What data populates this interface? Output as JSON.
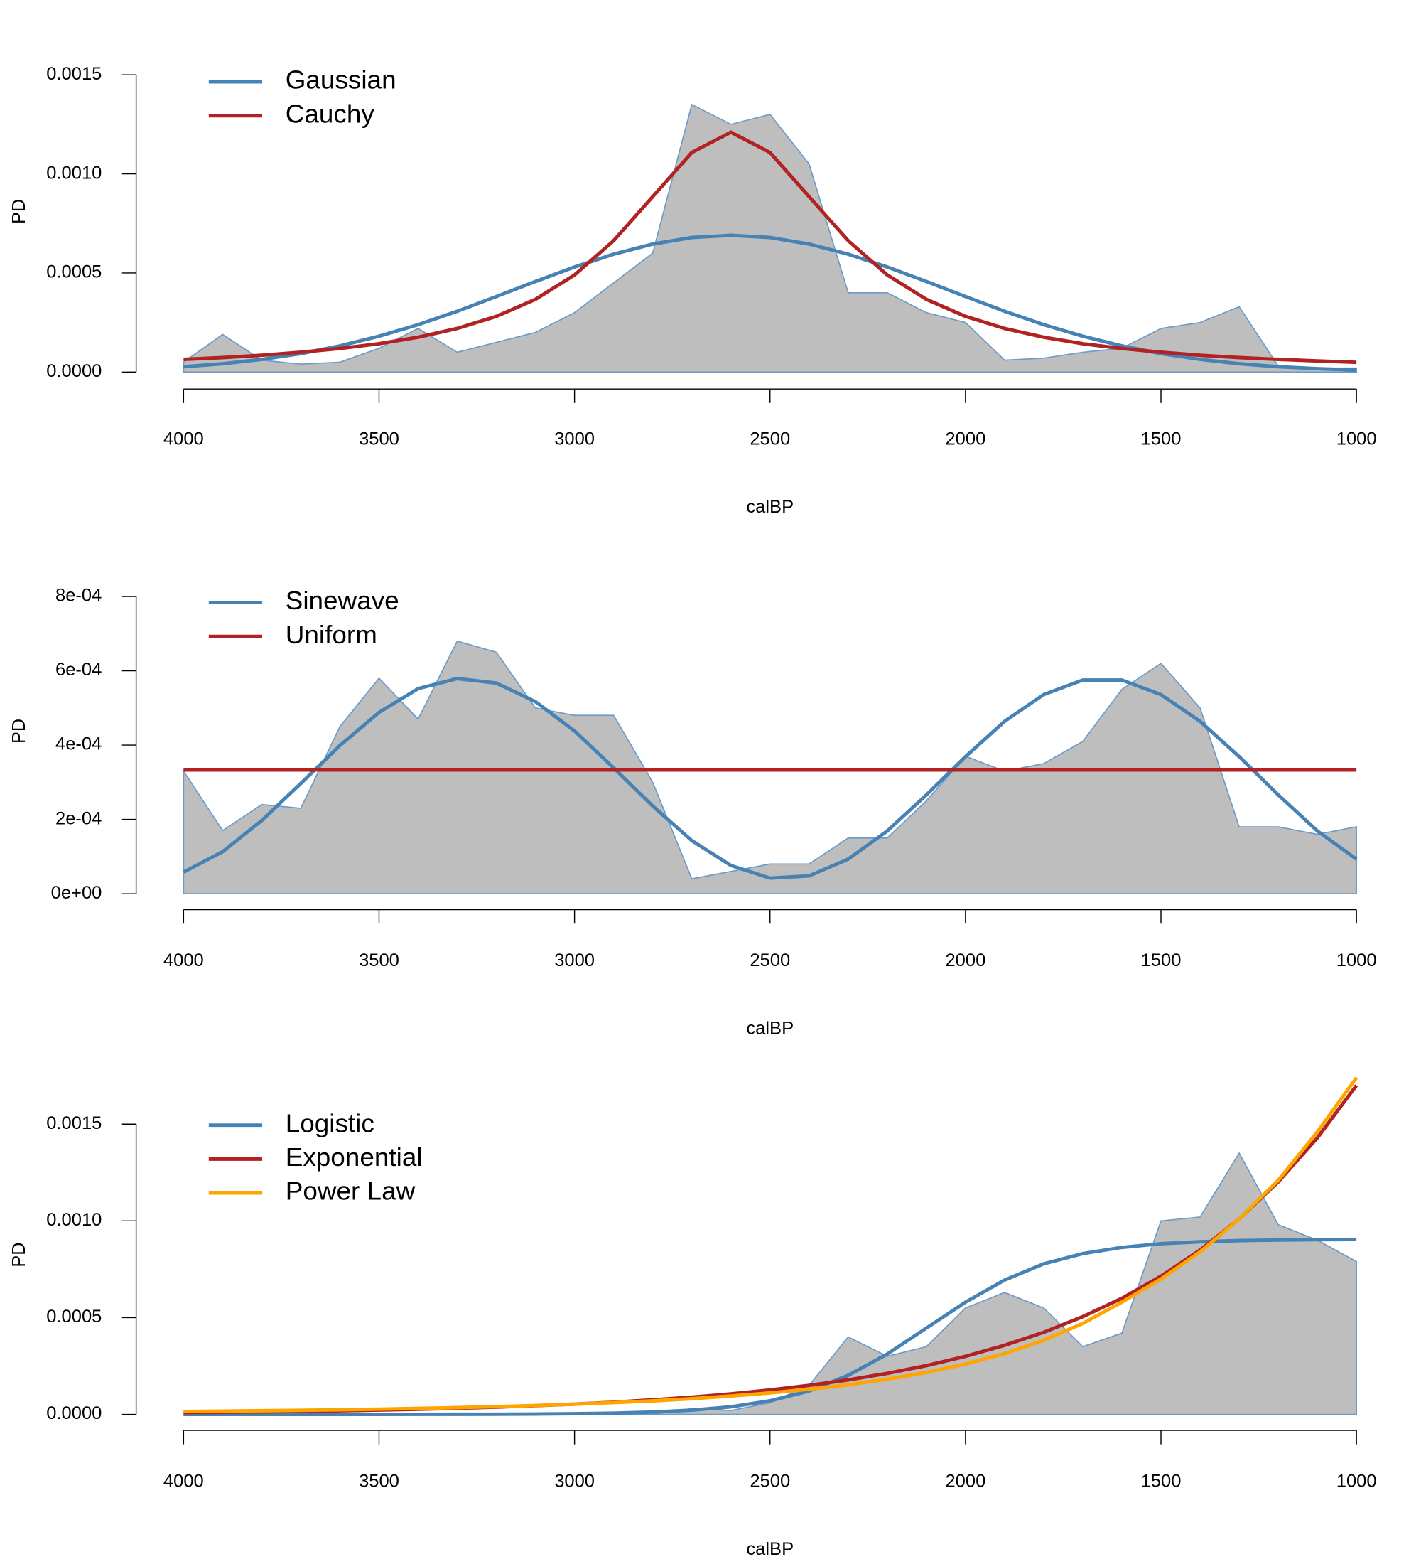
{
  "chart_data": [
    {
      "type": "line",
      "xlabel": "calBP",
      "ylabel": "PD",
      "x": [
        4000,
        3900,
        3800,
        3700,
        3600,
        3500,
        3400,
        3300,
        3200,
        3100,
        3000,
        2900,
        2800,
        2700,
        2600,
        2500,
        2400,
        2300,
        2200,
        2100,
        2000,
        1900,
        1800,
        1700,
        1600,
        1500,
        1400,
        1300,
        1200,
        1100,
        1000
      ],
      "xlim": [
        4000,
        1000
      ],
      "xticks": [
        4000,
        3500,
        3000,
        2500,
        2000,
        1500,
        1000
      ],
      "ylim": [
        0,
        0.0015
      ],
      "yticks": [
        {
          "value": 0,
          "label": "0.0000"
        },
        {
          "value": 0.0005,
          "label": "0.0005"
        },
        {
          "value": 0.001,
          "label": "0.0010"
        },
        {
          "value": 0.0015,
          "label": "0.0015"
        }
      ],
      "area": {
        "color": "#bebebe",
        "edge": "#6c9bc8",
        "values": [
          5e-05,
          0.00019,
          6e-05,
          4e-05,
          5e-05,
          0.00012,
          0.00022,
          0.0001,
          0.00015,
          0.0002,
          0.0003,
          0.00045,
          0.0006,
          0.00135,
          0.00125,
          0.0013,
          0.00105,
          0.0004,
          0.0004,
          0.0003,
          0.00025,
          6e-05,
          7e-05,
          0.0001,
          0.00012,
          0.00022,
          0.00025,
          0.00033,
          3e-05,
          2e-05,
          2e-05
        ]
      },
      "series": [
        {
          "name": "Gaussian",
          "color": "#4682b4",
          "values": [
            2.7e-05,
            4.2e-05,
            6.4e-05,
            9.3e-05,
            0.000132,
            0.000181,
            0.000239,
            0.000307,
            0.000381,
            0.000457,
            0.00053,
            0.000595,
            0.000646,
            0.000679,
            0.00069,
            0.000679,
            0.000646,
            0.000595,
            0.00053,
            0.000457,
            0.000381,
            0.000307,
            0.000239,
            0.000181,
            0.000132,
            9.3e-05,
            6.4e-05,
            4.2e-05,
            2.7e-05,
            1.7e-05,
            1e-05
          ]
        },
        {
          "name": "Cauchy",
          "color": "#b22222",
          "values": [
            6.4e-05,
            7.3e-05,
            8.5e-05,
            0.0001,
            0.000119,
            0.000143,
            0.000176,
            0.00022,
            0.000281,
            0.000367,
            0.00049,
            0.000663,
            0.000885,
            0.001108,
            0.00121,
            0.001108,
            0.000885,
            0.000663,
            0.00049,
            0.000367,
            0.000281,
            0.00022,
            0.000176,
            0.000143,
            0.000119,
            0.0001,
            8.5e-05,
            7.3e-05,
            6.4e-05,
            5.6e-05,
            4.9e-05
          ]
        }
      ]
    },
    {
      "type": "line",
      "xlabel": "calBP",
      "ylabel": "PD",
      "x": [
        4000,
        3900,
        3800,
        3700,
        3600,
        3500,
        3400,
        3300,
        3200,
        3100,
        3000,
        2900,
        2800,
        2700,
        2600,
        2500,
        2400,
        2300,
        2200,
        2100,
        2000,
        1900,
        1800,
        1700,
        1600,
        1500,
        1400,
        1300,
        1200,
        1100,
        1000
      ],
      "xlim": [
        4000,
        1000
      ],
      "xticks": [
        4000,
        3500,
        3000,
        2500,
        2000,
        1500,
        1000
      ],
      "ylim": [
        0,
        0.0008
      ],
      "yticks": [
        {
          "value": 0,
          "label": "0e+00"
        },
        {
          "value": 0.0002,
          "label": "2e-04"
        },
        {
          "value": 0.0004,
          "label": "4e-04"
        },
        {
          "value": 0.0006,
          "label": "6e-04"
        },
        {
          "value": 0.0008,
          "label": "8e-04"
        }
      ],
      "area": {
        "color": "#bebebe",
        "edge": "#6c9bc8",
        "values": [
          0.00033,
          0.00017,
          0.00024,
          0.00023,
          0.00045,
          0.00058,
          0.00047,
          0.00068,
          0.00065,
          0.0005,
          0.00048,
          0.00048,
          0.0003,
          4e-05,
          6e-05,
          8e-05,
          8e-05,
          0.00015,
          0.00015,
          0.00025,
          0.00037,
          0.00033,
          0.00035,
          0.00041,
          0.00055,
          0.00062,
          0.0005,
          0.00018,
          0.00018,
          0.00016,
          0.00018
        ]
      },
      "series": [
        {
          "name": "Sinewave",
          "color": "#4682b4",
          "values": [
            5.8e-05,
            0.000113,
            0.000197,
            0.000297,
            0.000399,
            0.000488,
            0.000552,
            0.000579,
            0.000567,
            0.000517,
            0.000438,
            0.000339,
            0.000236,
            0.000143,
            7.6e-05,
            4.2e-05,
            4.8e-05,
            9.3e-05,
            0.000169,
            0.000266,
            0.000369,
            0.000464,
            0.000536,
            0.000575,
            0.000575,
            0.000536,
            0.000464,
            0.000369,
            0.000266,
            0.000169,
            9.3e-05
          ]
        },
        {
          "name": "Uniform",
          "color": "#b22222",
          "values": [
            0.000333,
            0.000333,
            0.000333,
            0.000333,
            0.000333,
            0.000333,
            0.000333,
            0.000333,
            0.000333,
            0.000333,
            0.000333,
            0.000333,
            0.000333,
            0.000333,
            0.000333,
            0.000333,
            0.000333,
            0.000333,
            0.000333,
            0.000333,
            0.000333,
            0.000333,
            0.000333,
            0.000333,
            0.000333,
            0.000333,
            0.000333,
            0.000333,
            0.000333,
            0.000333,
            0.000333
          ]
        }
      ]
    },
    {
      "type": "line",
      "xlabel": "calBP",
      "ylabel": "PD",
      "x": [
        4000,
        3900,
        3800,
        3700,
        3600,
        3500,
        3400,
        3300,
        3200,
        3100,
        3000,
        2900,
        2800,
        2700,
        2600,
        2500,
        2400,
        2300,
        2200,
        2100,
        2000,
        1900,
        1800,
        1700,
        1600,
        1500,
        1400,
        1300,
        1200,
        1100,
        1000
      ],
      "xlim": [
        4000,
        1000
      ],
      "xticks": [
        4000,
        3500,
        3000,
        2500,
        2000,
        1500,
        1000
      ],
      "ylim": [
        0,
        0.0015
      ],
      "yticks": [
        {
          "value": 0,
          "label": "0.0000"
        },
        {
          "value": 0.0005,
          "label": "0.0005"
        },
        {
          "value": 0.001,
          "label": "0.0010"
        },
        {
          "value": 0.0015,
          "label": "0.0015"
        }
      ],
      "area": {
        "color": "#bebebe",
        "edge": "#6c9bc8",
        "values": [
          0,
          0,
          0,
          0,
          0,
          0,
          0,
          0,
          0,
          0,
          0,
          0,
          0,
          3e-05,
          2e-05,
          6e-05,
          0.00015,
          0.0004,
          0.0003,
          0.00035,
          0.00055,
          0.00063,
          0.00055,
          0.00035,
          0.00042,
          0.001,
          0.00102,
          0.00135,
          0.00098,
          0.0009,
          0.00079
        ]
      },
      "series": [
        {
          "name": "Logistic",
          "color": "#4682b4",
          "values": [
            1e-08,
            2e-08,
            3e-08,
            5e-08,
            9e-08,
            1.7e-07,
            3e-07,
            6e-07,
            1e-06,
            1.9e-06,
            3.5e-06,
            6.5e-06,
            1.2e-05,
            2.2e-05,
            3.9e-05,
            7e-05,
            0.000121,
            0.000202,
            0.000312,
            0.000446,
            0.00058,
            0.000694,
            0.000778,
            0.000831,
            0.000863,
            0.000882,
            0.000892,
            0.000898,
            0.000901,
            0.000903,
            0.000904
          ]
        },
        {
          "name": "Exponential",
          "color": "#b22222",
          "values": [
            9.4e-06,
            1.11e-05,
            1.33e-05,
            1.58e-05,
            1.87e-05,
            2.23e-05,
            2.65e-05,
            3.15e-05,
            3.75e-05,
            4.5e-05,
            5.3e-05,
            6.3e-05,
            7.5e-05,
            8.9e-05,
            0.000106,
            0.000126,
            0.00015,
            0.000178,
            0.000212,
            0.000252,
            0.0003,
            0.000357,
            0.000424,
            0.000505,
            0.0006,
            0.000714,
            0.000849,
            0.00101,
            0.001202,
            0.001429,
            0.0017
          ]
        },
        {
          "name": "Power Law",
          "color": "#ffa500",
          "values": [
            1.5e-05,
            1.7e-05,
            1.9e-05,
            2.1e-05,
            2.4e-05,
            2.7e-05,
            3.1e-05,
            3.5e-05,
            4e-05,
            4.6e-05,
            5.3e-05,
            6.1e-05,
            7e-05,
            8.1e-05,
            9.5e-05,
            0.000111,
            0.00013,
            0.000153,
            0.000182,
            0.000217,
            0.00026,
            0.000314,
            0.000383,
            0.00047,
            0.00058,
            0.0007,
            0.00084,
            0.00101,
            0.00121,
            0.00146,
            0.00174
          ]
        }
      ]
    }
  ]
}
